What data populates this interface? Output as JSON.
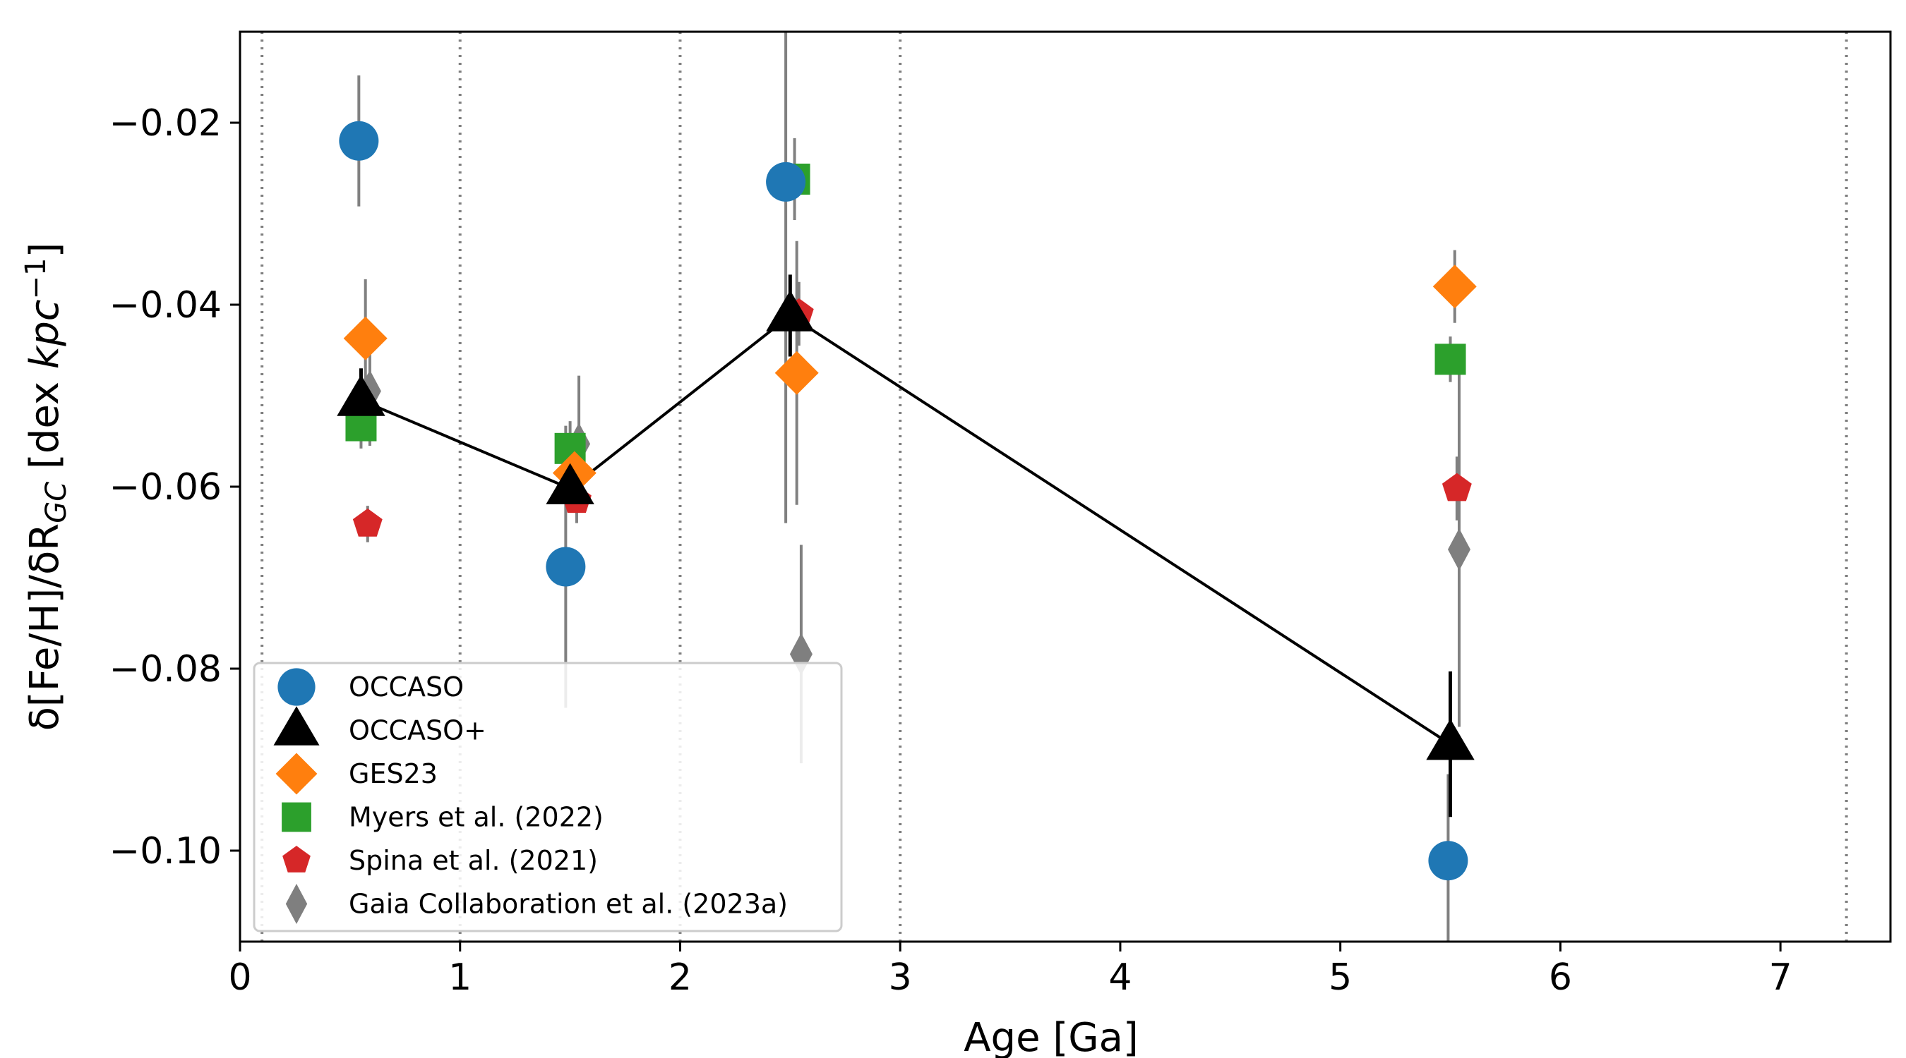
{
  "chart_data": {
    "type": "scatter",
    "xlabel": "Age [Ga]",
    "ylabel": {
      "main": "δ[Fe/H]/δR",
      "sub": "GC",
      "unit_prefix": "[dex  ",
      "unit_var": "kpc",
      "unit_exp": "−1",
      "unit_suffix": "]"
    },
    "xlim": [
      0,
      7.5
    ],
    "ylim": [
      -0.11,
      -0.01
    ],
    "xticks": [
      0,
      1,
      2,
      3,
      4,
      5,
      6,
      7
    ],
    "xtick_labels": [
      "0",
      "1",
      "2",
      "3",
      "4",
      "5",
      "6",
      "7"
    ],
    "yticks": [
      -0.02,
      -0.04,
      -0.06,
      -0.08,
      -0.1
    ],
    "ytick_labels": [
      "−0.02",
      "−0.04",
      "−0.06",
      "−0.08",
      "−0.10"
    ],
    "vlines": [
      0.1,
      1,
      2,
      3,
      7.3
    ],
    "legend_position": "lower-left",
    "series": [
      {
        "name": "OCCASO",
        "marker": "circle",
        "color": "#1f77b4",
        "points": [
          {
            "x": 0.54,
            "y": -0.022,
            "err": 0.0072
          },
          {
            "x": 1.48,
            "y": -0.0688,
            "err": 0.0155
          },
          {
            "x": 2.48,
            "y": -0.0265,
            "err": 0.0375
          },
          {
            "x": 5.49,
            "y": -0.1011,
            "err": 0.0095
          }
        ]
      },
      {
        "name": "OCCASO+",
        "marker": "triangle",
        "color": "#000000",
        "line": true,
        "points": [
          {
            "x": 0.55,
            "y": -0.0505,
            "err": 0.0035
          },
          {
            "x": 1.5,
            "y": -0.0602,
            "err": 0.0025
          },
          {
            "x": 2.5,
            "y": -0.0412,
            "err": 0.0045
          },
          {
            "x": 5.5,
            "y": -0.0883,
            "err": 0.008
          }
        ]
      },
      {
        "name": "GES23",
        "marker": "diamond",
        "color": "#ff7f0e",
        "points": [
          {
            "x": 0.57,
            "y": -0.0437,
            "err": 0.0065
          },
          {
            "x": 1.52,
            "y": -0.0585,
            "err": 0.004
          },
          {
            "x": 2.53,
            "y": -0.0475,
            "err": 0.0145
          },
          {
            "x": 5.52,
            "y": -0.038,
            "err": 0.004
          }
        ]
      },
      {
        "name": "Myers et al. (2022)",
        "marker": "square",
        "color": "#2ca02c",
        "points": [
          {
            "x": 0.55,
            "y": -0.0533,
            "err": 0.0025
          },
          {
            "x": 1.5,
            "y": -0.0558,
            "err": 0.003
          },
          {
            "x": 2.52,
            "y": -0.0262,
            "err": 0.0045
          },
          {
            "x": 5.5,
            "y": -0.046,
            "err": 0.0025
          }
        ]
      },
      {
        "name": "Spina et al. (2021)",
        "marker": "pentagon",
        "color": "#d62728",
        "points": [
          {
            "x": 0.58,
            "y": -0.0641,
            "err": 0.002
          },
          {
            "x": 1.53,
            "y": -0.0615,
            "err": 0.0025
          },
          {
            "x": 2.54,
            "y": -0.041,
            "err": 0.0035
          },
          {
            "x": 5.53,
            "y": -0.0602,
            "err": 0.0035
          }
        ]
      },
      {
        "name": "Gaia Collaboration et al. (2023a)",
        "marker": "thin_diamond",
        "color": "#7f7f7f",
        "points": [
          {
            "x": 0.59,
            "y": -0.0495,
            "err": 0.006
          },
          {
            "x": 1.54,
            "y": -0.0553,
            "err": 0.0075
          },
          {
            "x": 2.55,
            "y": -0.0784,
            "err": 0.012
          },
          {
            "x": 5.54,
            "y": -0.0669,
            "err": 0.0195
          }
        ]
      }
    ]
  }
}
